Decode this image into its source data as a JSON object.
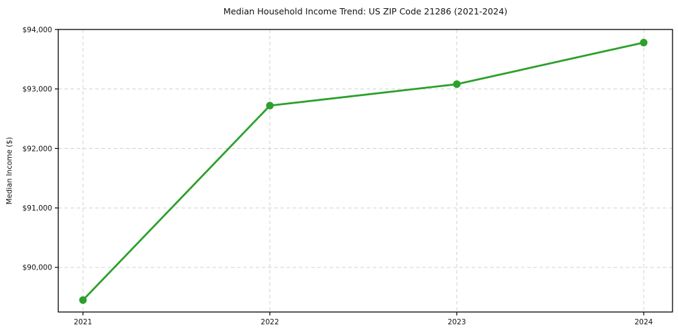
{
  "chart_data": {
    "type": "line",
    "title": "Median Household Income Trend: US ZIP Code 21286 (2021-2024)",
    "xlabel": "",
    "ylabel": "Median Income ($)",
    "x": [
      2021,
      2022,
      2023,
      2024
    ],
    "x_tick_labels": [
      "2021",
      "2022",
      "2023",
      "2024"
    ],
    "values": [
      89450,
      92720,
      93080,
      93780
    ],
    "y_ticks": [
      90000,
      91000,
      92000,
      93000,
      94000
    ],
    "y_tick_labels": [
      "$90,000",
      "$91,000",
      "$92,000",
      "$93,000",
      "$94,000"
    ],
    "ylim": [
      89250,
      94000
    ],
    "grid": true,
    "grid_style": "dashed",
    "legend": "none",
    "line_color": "#2ca02c",
    "marker_color": "#2ca02c",
    "grid_color": "#d0d0d0",
    "axis_color": "#000000",
    "background_color": "#ffffff"
  }
}
